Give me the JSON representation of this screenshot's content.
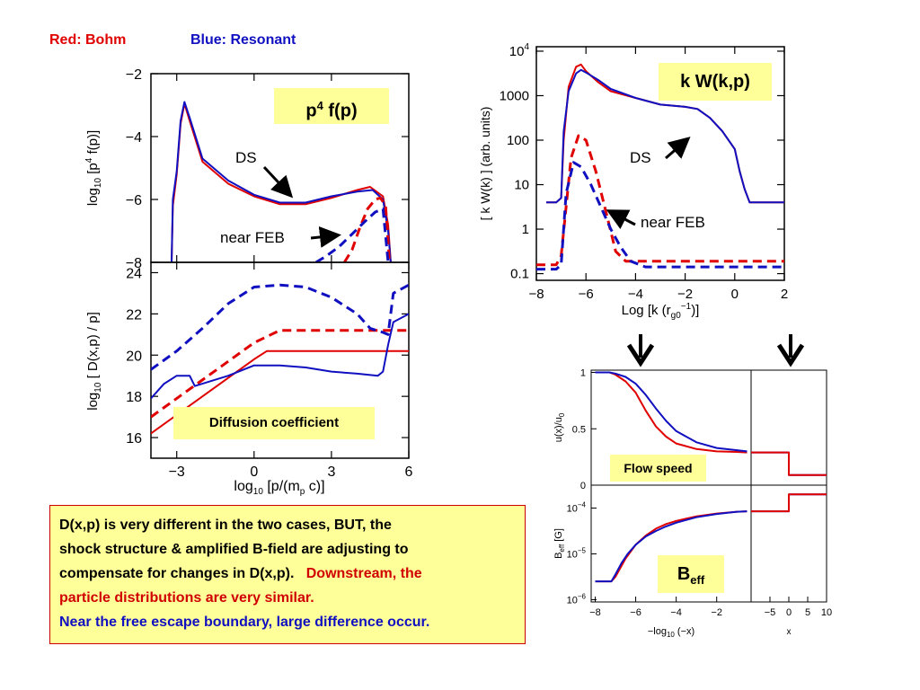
{
  "legend": {
    "red_label": "Red: Bohm",
    "blue_label": "Blue: Resonant",
    "red_color": "#e00000",
    "blue_color": "#1010c0"
  },
  "note": {
    "line1": "D(x,p) is very different in the two cases,  BUT, the",
    "line2": "shock structure & amplified B-field are adjusting to",
    "line3": "compensate for changes in D(x,p).",
    "line3_red": "Downstream, the",
    "line4_red": "particle distributions are very similar.",
    "line5_blue": "Near the free escape boundary, large difference occur."
  },
  "labels": {
    "p4fp_base": "p",
    "p4fp_sup": "4",
    "p4fp_rest": " f(p)",
    "diffusion": "Diffusion coefficient",
    "kw": "k W(k,p)",
    "flow": "Flow speed",
    "beff_base": "B",
    "beff_sub": "eff"
  },
  "annotations": {
    "ds_left": "DS",
    "near_feb_left": "near FEB",
    "ds_right": "DS",
    "near_feb_right": "near FEB"
  },
  "chart_data": [
    {
      "id": "p4fp",
      "type": "line",
      "ylabel": "log10 [p^4 f(p)]",
      "ylim": [
        -8,
        -2
      ],
      "xlim": [
        -4,
        6
      ],
      "y_ticks": [
        "-2",
        "-4",
        "-6",
        "-8"
      ],
      "series": [
        {
          "color": "red",
          "style": "solid",
          "x": [
            -3.2,
            -3.15,
            -3.0,
            -2.85,
            -2.7,
            -2.5,
            -2.0,
            -1.0,
            0.0,
            1.0,
            2.0,
            3.0,
            4.0,
            4.5,
            5.0,
            5.2,
            5.3
          ],
          "y": [
            -8,
            -6.2,
            -5.2,
            -3.6,
            -2.95,
            -3.5,
            -4.8,
            -5.5,
            -5.9,
            -6.15,
            -6.15,
            -5.95,
            -5.7,
            -5.6,
            -5.9,
            -6.8,
            -8
          ]
        },
        {
          "color": "blue",
          "style": "solid",
          "x": [
            -3.2,
            -3.15,
            -3.0,
            -2.85,
            -2.7,
            -2.5,
            -2.0,
            -1.0,
            0.0,
            1.0,
            2.0,
            3.0,
            4.0,
            4.6,
            5.0,
            5.2,
            5.3
          ],
          "y": [
            -8,
            -6.0,
            -5.1,
            -3.5,
            -2.9,
            -3.4,
            -4.7,
            -5.4,
            -5.85,
            -6.1,
            -6.1,
            -5.9,
            -5.75,
            -5.7,
            -6.0,
            -7.0,
            -8
          ]
        },
        {
          "color": "red",
          "style": "dashed",
          "x": [
            3.5,
            3.8,
            4.1,
            4.4,
            4.7,
            4.9,
            5.1,
            5.25
          ],
          "y": [
            -8,
            -7.6,
            -6.9,
            -6.3,
            -6.0,
            -5.95,
            -6.2,
            -8
          ]
        },
        {
          "color": "blue",
          "style": "dashed",
          "x": [
            2.4,
            2.8,
            3.3,
            3.8,
            4.3,
            4.7,
            5.0,
            5.2
          ],
          "y": [
            -8,
            -7.8,
            -7.5,
            -7.1,
            -6.7,
            -6.4,
            -6.3,
            -8
          ]
        }
      ]
    },
    {
      "id": "diffusion",
      "type": "line",
      "xlabel": "log10 [p/(mp c)]",
      "ylabel": "log10 [ D(x,p) / p]",
      "xlim": [
        -4,
        6
      ],
      "ylim": [
        15,
        24.5
      ],
      "x_ticks": [
        "-3",
        "0",
        "3",
        "6"
      ],
      "y_ticks": [
        "16",
        "18",
        "20",
        "22",
        "24"
      ],
      "series": [
        {
          "color": "red",
          "style": "solid",
          "x": [
            -4,
            0,
            0.5,
            6
          ],
          "y": [
            16.2,
            19.8,
            20.2,
            20.2
          ]
        },
        {
          "color": "red",
          "style": "dashed",
          "x": [
            -4,
            0,
            1,
            6
          ],
          "y": [
            17.0,
            20.6,
            21.2,
            21.2
          ]
        },
        {
          "color": "blue",
          "style": "solid",
          "x": [
            -4,
            -3.5,
            -3,
            -2.5,
            -2.3,
            -1,
            0,
            1,
            2,
            3,
            4,
            4.8,
            5.0,
            5.2,
            5.4,
            6
          ],
          "y": [
            17.9,
            18.6,
            19.0,
            19.0,
            18.5,
            19.0,
            19.5,
            19.5,
            19.4,
            19.2,
            19.1,
            19.0,
            19.2,
            20.5,
            21.6,
            22.0
          ]
        },
        {
          "color": "blue",
          "style": "dashed",
          "x": [
            -4,
            -3,
            -2,
            -1,
            0,
            1,
            2,
            3,
            4,
            4.5,
            5,
            5.2,
            5.4,
            6
          ],
          "y": [
            19.3,
            20.2,
            21.3,
            22.5,
            23.3,
            23.4,
            23.3,
            22.8,
            22.0,
            21.3,
            21.1,
            21.0,
            23.0,
            23.4
          ]
        }
      ]
    },
    {
      "id": "kW",
      "type": "line",
      "xlabel": "Log [k (rg0^-1)]",
      "ylabel": "[ k W(k) ] (arb. units)",
      "xlim": [
        -8,
        2
      ],
      "ylim_log10": [
        -1.15,
        4.1
      ],
      "x_ticks": [
        "-8",
        "-6",
        "-4",
        "-2",
        "0",
        "2"
      ],
      "y_ticks": [
        "0.1",
        "1",
        "10",
        "100",
        "1000",
        "10^4"
      ],
      "series": [
        {
          "color": "red",
          "style": "solid",
          "x": [
            -7.6,
            -7.2,
            -7.0,
            -6.9,
            -6.7,
            -6.4,
            -6.2,
            -6.0,
            -5.5,
            -5,
            -4,
            -3,
            -2,
            -1.5,
            -1,
            -0.5,
            0,
            0.2,
            0.4,
            0.6,
            0.8,
            1.2,
            2
          ],
          "y_log10": [
            0.6,
            0.6,
            0.7,
            2.0,
            3.2,
            3.65,
            3.7,
            3.55,
            3.3,
            3.1,
            2.95,
            2.8,
            2.75,
            2.7,
            2.5,
            2.2,
            1.8,
            1.3,
            0.9,
            0.6,
            0.6,
            0.6,
            0.6
          ]
        },
        {
          "color": "blue",
          "style": "solid",
          "x": [
            -7.6,
            -7.2,
            -7.0,
            -6.9,
            -6.7,
            -6.4,
            -6.2,
            -6.0,
            -5.5,
            -5,
            -4,
            -3,
            -2,
            -1.5,
            -1,
            -0.5,
            0,
            0.2,
            0.4,
            0.6,
            0.8,
            1.2,
            2
          ],
          "y_log10": [
            0.6,
            0.6,
            0.7,
            2.2,
            3.1,
            3.5,
            3.58,
            3.52,
            3.35,
            3.15,
            2.95,
            2.8,
            2.75,
            2.7,
            2.5,
            2.2,
            1.8,
            1.3,
            0.9,
            0.6,
            0.6,
            0.6,
            0.6
          ]
        },
        {
          "color": "red",
          "style": "dashed",
          "x": [
            -8,
            -7.2,
            -7.0,
            -6.8,
            -6.6,
            -6.3,
            -6.0,
            -5.6,
            -5.2,
            -4.8,
            -4.4,
            -4,
            -2,
            0,
            2
          ],
          "y_log10": [
            -0.8,
            -0.8,
            -0.6,
            0.5,
            1.6,
            2.1,
            2.0,
            1.3,
            0.4,
            -0.5,
            -0.72,
            -0.72,
            -0.72,
            -0.72,
            -0.72
          ]
        },
        {
          "color": "blue",
          "style": "dashed",
          "x": [
            -8,
            -7.2,
            -7.0,
            -6.8,
            -6.5,
            -6.2,
            -5.8,
            -5.4,
            -5.0,
            -4.6,
            -4.2,
            -3.6,
            -3,
            -2,
            0,
            2
          ],
          "y_log10": [
            -0.9,
            -0.9,
            -0.8,
            0.8,
            1.5,
            1.4,
            1.0,
            0.5,
            0.0,
            -0.4,
            -0.72,
            -0.85,
            -0.85,
            -0.85,
            -0.85,
            -0.85
          ]
        }
      ]
    },
    {
      "id": "flow",
      "type": "line",
      "ylabel": "u(x)/u0",
      "ylim": [
        0,
        1
      ],
      "y_ticks": [
        "0",
        "0.5",
        "1"
      ],
      "series": [
        {
          "color": "red",
          "style": "solid",
          "x": [
            -8,
            -7.3,
            -7,
            -6.5,
            -6,
            -5.5,
            -5,
            -4.5,
            -4,
            -3,
            -2,
            -1,
            -0.5
          ],
          "y": [
            1.0,
            1.0,
            0.98,
            0.92,
            0.82,
            0.66,
            0.52,
            0.43,
            0.37,
            0.32,
            0.3,
            0.295,
            0.29
          ]
        },
        {
          "color": "blue",
          "style": "solid",
          "x": [
            -8,
            -7.3,
            -7,
            -6.5,
            -6,
            -5.5,
            -5,
            -4.5,
            -4,
            -3,
            -2,
            -1,
            -0.5
          ],
          "y": [
            1.0,
            1.0,
            0.99,
            0.96,
            0.9,
            0.8,
            0.68,
            0.57,
            0.48,
            0.38,
            0.33,
            0.31,
            0.3
          ]
        }
      ]
    },
    {
      "id": "beff",
      "type": "line",
      "xlabel": "-log10 (-x)",
      "ylabel": "Beff [G]",
      "y_ticks": [
        "10^-4",
        "10^-5",
        "10^-6"
      ],
      "x_ticks": [
        "-8",
        "-6",
        "-4",
        "-2"
      ],
      "series": [
        {
          "color": "red",
          "style": "solid",
          "x": [
            -8,
            -7.2,
            -7,
            -6.5,
            -6,
            -5.5,
            -5,
            -4.5,
            -4,
            -3,
            -2,
            -1,
            -0.5
          ],
          "y_log10": [
            -5.6,
            -5.6,
            -5.5,
            -5.1,
            -4.8,
            -4.6,
            -4.45,
            -4.35,
            -4.28,
            -4.18,
            -4.12,
            -4.08,
            -4.07
          ]
        },
        {
          "color": "blue",
          "style": "solid",
          "x": [
            -8,
            -7.2,
            -7,
            -6.7,
            -6.4,
            -6,
            -5.5,
            -5,
            -4.5,
            -4,
            -3,
            -2,
            -1,
            -0.5
          ],
          "y_log10": [
            -5.6,
            -5.6,
            -5.45,
            -5.2,
            -5.0,
            -4.8,
            -4.62,
            -4.5,
            -4.4,
            -4.32,
            -4.2,
            -4.13,
            -4.08,
            -4.07
          ]
        }
      ]
    },
    {
      "id": "right_insets",
      "type": "line",
      "xlabel": "x",
      "x_ticks": [
        "-5",
        "0",
        "5",
        "10"
      ],
      "xlim": [
        -10,
        10
      ],
      "flow_series": [
        {
          "color": "blue",
          "style": "solid",
          "x": [
            -10,
            0,
            0,
            10
          ],
          "y": [
            0.29,
            0.29,
            0.09,
            0.09
          ]
        },
        {
          "color": "red",
          "style": "solid",
          "x": [
            -10,
            0,
            0,
            10
          ],
          "y": [
            0.29,
            0.29,
            0.09,
            0.09
          ]
        }
      ],
      "beff_series": [
        {
          "color": "blue",
          "style": "solid",
          "x": [
            -10,
            0,
            0,
            10
          ],
          "y_log10": [
            -4.07,
            -4.07,
            -3.7,
            -3.7
          ]
        },
        {
          "color": "red",
          "style": "solid",
          "x": [
            -10,
            0,
            0,
            10
          ],
          "y_log10": [
            -4.07,
            -4.07,
            -3.7,
            -3.7
          ]
        }
      ]
    }
  ]
}
